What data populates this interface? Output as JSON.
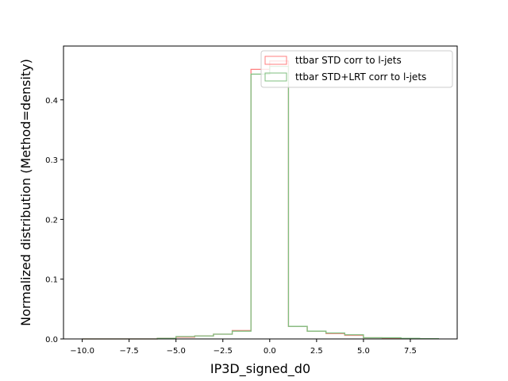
{
  "chart_data": {
    "type": "step-histogram",
    "xlabel": "IP3D_signed_d0",
    "ylabel": "Normalized distribution (Method=density)",
    "xlim": [
      -11,
      10
    ],
    "ylim": [
      0,
      0.49
    ],
    "xticks": [
      -10.0,
      -7.5,
      -5.0,
      -2.5,
      0.0,
      2.5,
      5.0,
      7.5
    ],
    "xtick_labels": [
      "−10.0",
      "−7.5",
      "−5.0",
      "−2.5",
      "0.0",
      "2.5",
      "5.0",
      "7.5"
    ],
    "yticks": [
      0.0,
      0.1,
      0.2,
      0.3,
      0.4
    ],
    "ytick_labels": [
      "0.0",
      "0.1",
      "0.2",
      "0.3",
      "0.4"
    ],
    "grid": false,
    "legend_position": "upper right",
    "series": [
      {
        "name": "ttbar STD corr to l-jets",
        "color": "#ff7f7f",
        "bins": [
          -10,
          -9,
          -8,
          -7,
          -6,
          -5,
          -4,
          -3,
          -2,
          -1,
          0,
          1,
          2,
          3,
          4,
          5,
          6,
          7,
          8,
          9
        ],
        "values": [
          0,
          0,
          0,
          0,
          0.001,
          0.003,
          0.005,
          0.008,
          0.014,
          0.451,
          0.465,
          0.021,
          0.013,
          0.009,
          0.006,
          0.002,
          0.001,
          0.0005,
          0.0002
        ]
      },
      {
        "name": "ttbar STD+LRT corr to l-jets",
        "color": "#7fbf7f",
        "bins": [
          -10,
          -9,
          -8,
          -7,
          -6,
          -5,
          -4,
          -3,
          -2,
          -1,
          0,
          1,
          2,
          3,
          4,
          5,
          6,
          7,
          8,
          9
        ],
        "values": [
          0,
          0,
          0,
          0,
          0.001,
          0.004,
          0.005,
          0.008,
          0.013,
          0.443,
          0.456,
          0.021,
          0.013,
          0.01,
          0.007,
          0.002,
          0.002,
          0.001,
          0.0005
        ]
      }
    ]
  }
}
